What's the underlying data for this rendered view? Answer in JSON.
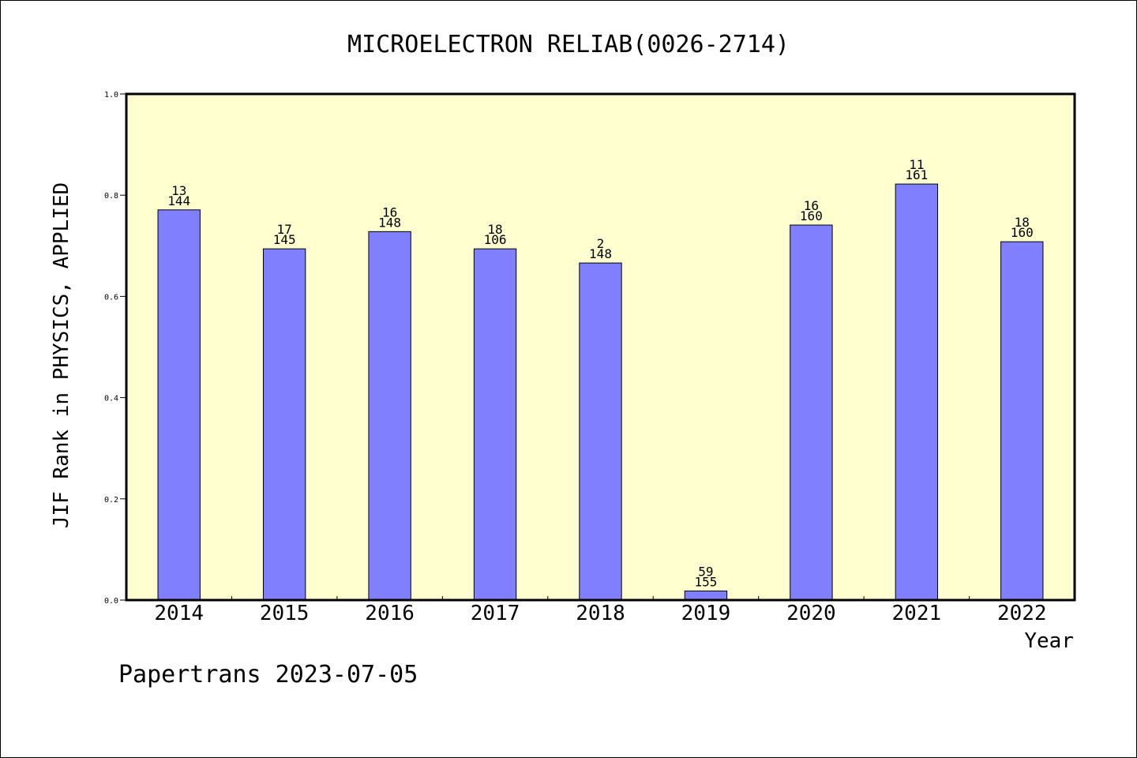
{
  "chart_data": {
    "type": "bar",
    "title": "MICROELECTRON RELIAB(0026-2714)",
    "xlabel": "Year",
    "ylabel": "JIF Rank in PHYSICS, APPLIED",
    "ylim": [
      0,
      1.0
    ],
    "yticks": [
      "0.0",
      "0.2",
      "0.4",
      "0.6",
      "0.8",
      "1.0"
    ],
    "categories": [
      "2014",
      "2015",
      "2016",
      "2017",
      "2018",
      "2019",
      "2020",
      "2021",
      "2022"
    ],
    "values": [
      0.771,
      0.694,
      0.728,
      0.694,
      0.666,
      0.018,
      0.741,
      0.822,
      0.708
    ],
    "label_top": [
      "13",
      "17",
      "16",
      "18",
      "2",
      "59",
      "16",
      "11",
      "18"
    ],
    "label_bottom": [
      "144",
      "145",
      "148",
      "106",
      "148",
      "155",
      "160",
      "161",
      "160"
    ],
    "grid": false,
    "colors": {
      "plot_bg": "#ffffd0",
      "bar": "#8080ff",
      "bar_edge": "#000000"
    }
  },
  "footer": {
    "source": "Papertrans 2023-07-05"
  }
}
